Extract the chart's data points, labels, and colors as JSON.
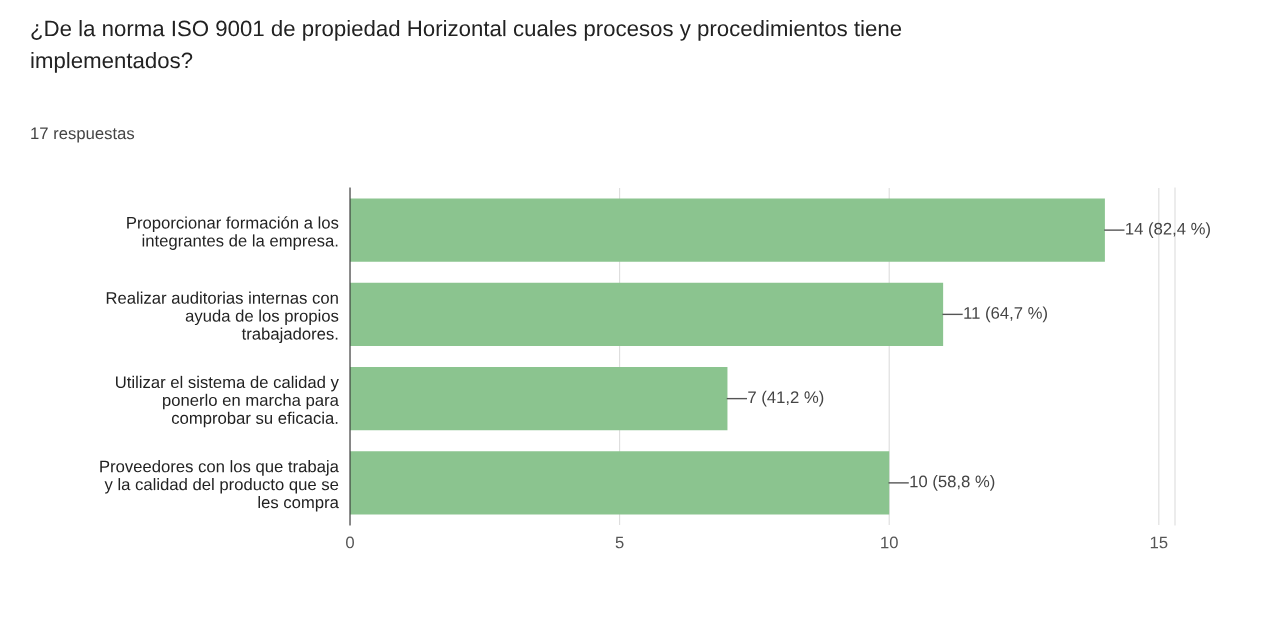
{
  "chart_data": {
    "type": "bar",
    "orientation": "horizontal",
    "title": "¿De la norma ISO 9001 de propiedad Horizontal cuales procesos y procedimientos tiene\nimplementados?",
    "subtitle": "17 respuestas",
    "categories": [
      "Proporcionar formación a los\nintegrantes de la empresa.",
      "Realizar auditorias internas con\nayuda de los propios\ntrabajadores.",
      "Utilizar el sistema de calidad y\nponerlo en marcha para\ncomprobar su eficacia.",
      "Proveedores con los que trabaja\ny la calidad del producto que se\nles compra"
    ],
    "values": [
      14,
      11,
      7,
      10
    ],
    "value_labels": [
      "14 (82,4 %)",
      "11 (64,7 %)",
      "7 (41,2 %)",
      "10 (58,8 %)"
    ],
    "color": "#8bc48f",
    "xlim": [
      0,
      15.3
    ],
    "xticks": [
      0,
      5,
      10,
      15
    ],
    "grid": "x",
    "legend": false
  }
}
